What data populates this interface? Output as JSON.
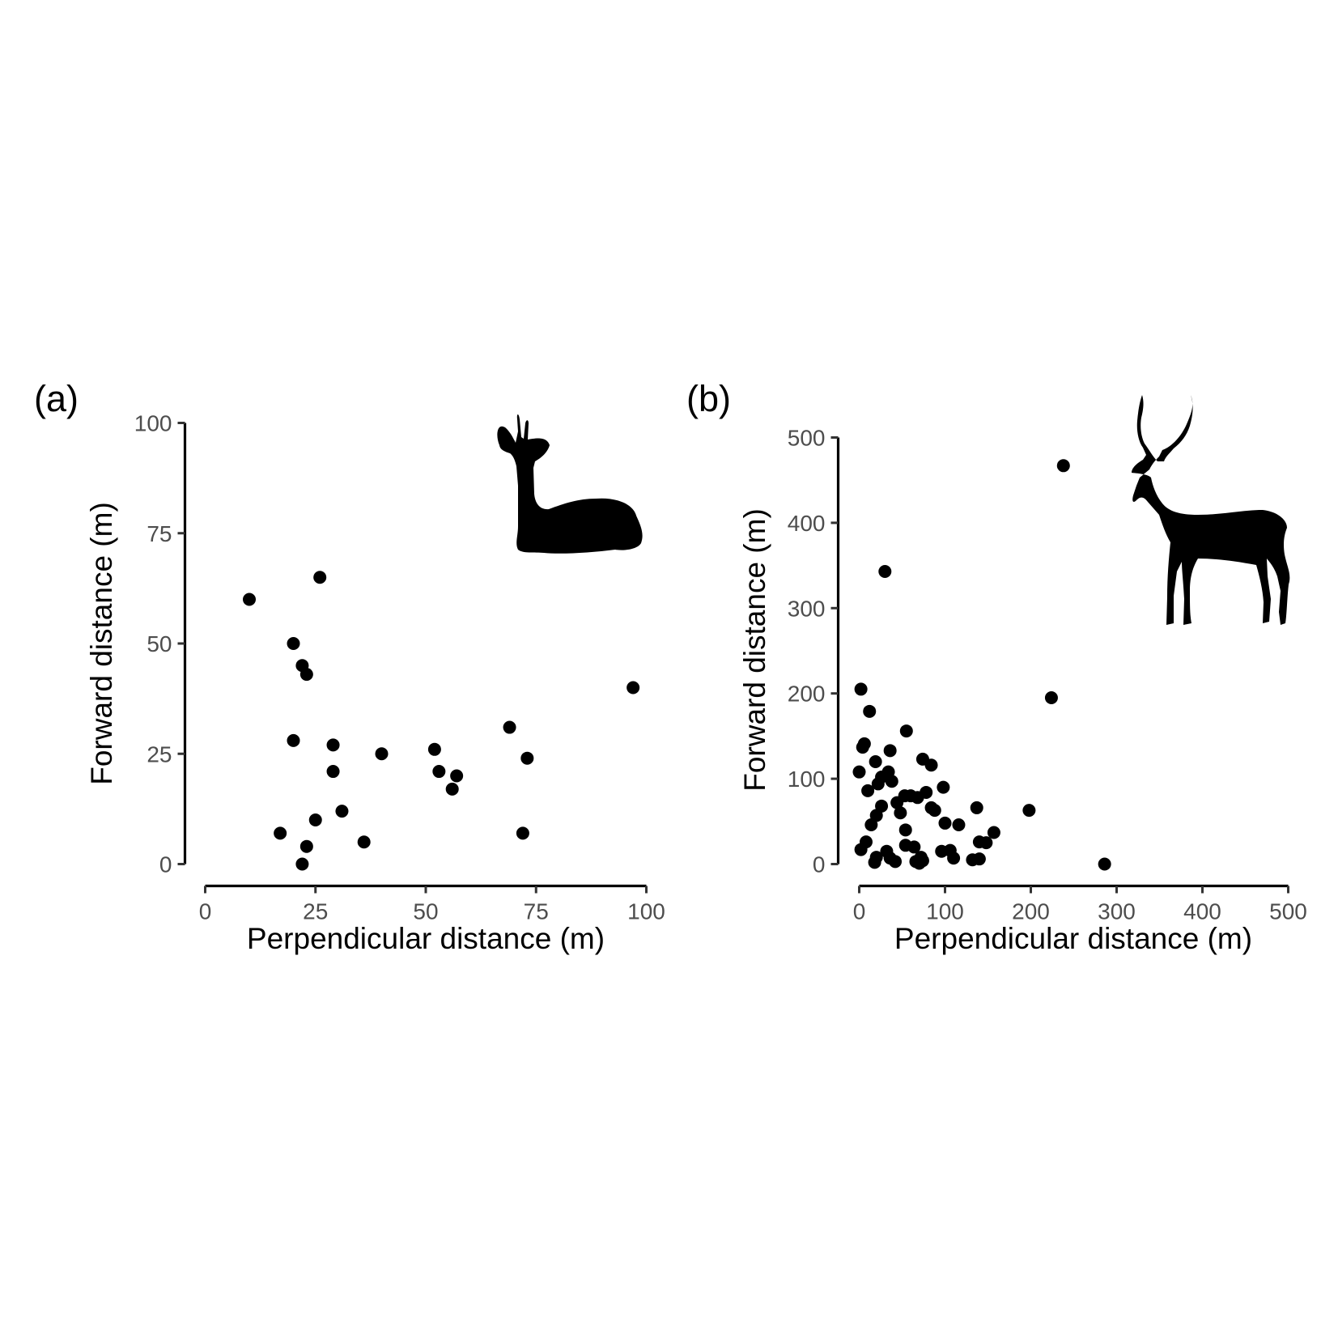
{
  "chart_data": [
    {
      "type": "scatter",
      "panel_label": "(a)",
      "xlabel": "Perpendicular distance (m)",
      "ylabel": "Forward distance (m)",
      "xlim": [
        0,
        100
      ],
      "ylim": [
        0,
        100
      ],
      "xticks": [
        0,
        25,
        50,
        75,
        100
      ],
      "yticks": [
        0,
        25,
        50,
        75,
        100
      ],
      "grid": false,
      "point_color": "#000000",
      "silhouette": "lying-antelope-icon",
      "points": [
        {
          "x": 10,
          "y": 60
        },
        {
          "x": 26,
          "y": 65
        },
        {
          "x": 20,
          "y": 50
        },
        {
          "x": 22,
          "y": 45
        },
        {
          "x": 23,
          "y": 43
        },
        {
          "x": 20,
          "y": 28
        },
        {
          "x": 29,
          "y": 27
        },
        {
          "x": 29,
          "y": 21
        },
        {
          "x": 40,
          "y": 25
        },
        {
          "x": 52,
          "y": 26
        },
        {
          "x": 53,
          "y": 21
        },
        {
          "x": 57,
          "y": 20
        },
        {
          "x": 56,
          "y": 17
        },
        {
          "x": 69,
          "y": 31
        },
        {
          "x": 73,
          "y": 24
        },
        {
          "x": 97,
          "y": 40
        },
        {
          "x": 31,
          "y": 12
        },
        {
          "x": 25,
          "y": 10
        },
        {
          "x": 17,
          "y": 7
        },
        {
          "x": 36,
          "y": 5
        },
        {
          "x": 23,
          "y": 4
        },
        {
          "x": 22,
          "y": 0
        },
        {
          "x": 72,
          "y": 7
        }
      ]
    },
    {
      "type": "scatter",
      "panel_label": "(b)",
      "xlabel": "Perpendicular distance (m)",
      "ylabel": "Forward distance (m)",
      "xlim": [
        0,
        500
      ],
      "ylim": [
        0,
        500
      ],
      "xticks": [
        0,
        100,
        200,
        300,
        400,
        500
      ],
      "yticks": [
        0,
        100,
        200,
        300,
        400,
        500
      ],
      "grid": false,
      "point_color": "#000000",
      "silhouette": "standing-antelope-icon",
      "points": [
        {
          "x": 238,
          "y": 467
        },
        {
          "x": 30,
          "y": 343
        },
        {
          "x": 224,
          "y": 195
        },
        {
          "x": 2,
          "y": 205
        },
        {
          "x": 12,
          "y": 179
        },
        {
          "x": 55,
          "y": 156
        },
        {
          "x": 6,
          "y": 141
        },
        {
          "x": 4,
          "y": 137
        },
        {
          "x": 36,
          "y": 133
        },
        {
          "x": 74,
          "y": 123
        },
        {
          "x": 84,
          "y": 116
        },
        {
          "x": 19,
          "y": 120
        },
        {
          "x": 0,
          "y": 108
        },
        {
          "x": 34,
          "y": 108
        },
        {
          "x": 26,
          "y": 102
        },
        {
          "x": 38,
          "y": 97
        },
        {
          "x": 22,
          "y": 94
        },
        {
          "x": 98,
          "y": 90
        },
        {
          "x": 10,
          "y": 86
        },
        {
          "x": 78,
          "y": 84
        },
        {
          "x": 53,
          "y": 80
        },
        {
          "x": 60,
          "y": 80
        },
        {
          "x": 68,
          "y": 78
        },
        {
          "x": 44,
          "y": 72
        },
        {
          "x": 26,
          "y": 68
        },
        {
          "x": 84,
          "y": 66
        },
        {
          "x": 88,
          "y": 63
        },
        {
          "x": 137,
          "y": 66
        },
        {
          "x": 198,
          "y": 63
        },
        {
          "x": 48,
          "y": 60
        },
        {
          "x": 20,
          "y": 57
        },
        {
          "x": 100,
          "y": 48
        },
        {
          "x": 116,
          "y": 46
        },
        {
          "x": 14,
          "y": 46
        },
        {
          "x": 54,
          "y": 40
        },
        {
          "x": 157,
          "y": 37
        },
        {
          "x": 8,
          "y": 26
        },
        {
          "x": 140,
          "y": 26
        },
        {
          "x": 148,
          "y": 25
        },
        {
          "x": 54,
          "y": 22
        },
        {
          "x": 64,
          "y": 20
        },
        {
          "x": 2,
          "y": 17
        },
        {
          "x": 96,
          "y": 15
        },
        {
          "x": 106,
          "y": 16
        },
        {
          "x": 32,
          "y": 15
        },
        {
          "x": 20,
          "y": 8
        },
        {
          "x": 36,
          "y": 7
        },
        {
          "x": 18,
          "y": 2
        },
        {
          "x": 42,
          "y": 3
        },
        {
          "x": 66,
          "y": 3
        },
        {
          "x": 74,
          "y": 4
        },
        {
          "x": 70,
          "y": 1
        },
        {
          "x": 110,
          "y": 7
        },
        {
          "x": 132,
          "y": 5
        },
        {
          "x": 140,
          "y": 6
        },
        {
          "x": 286,
          "y": 0
        },
        {
          "x": 72,
          "y": 8
        }
      ]
    }
  ]
}
